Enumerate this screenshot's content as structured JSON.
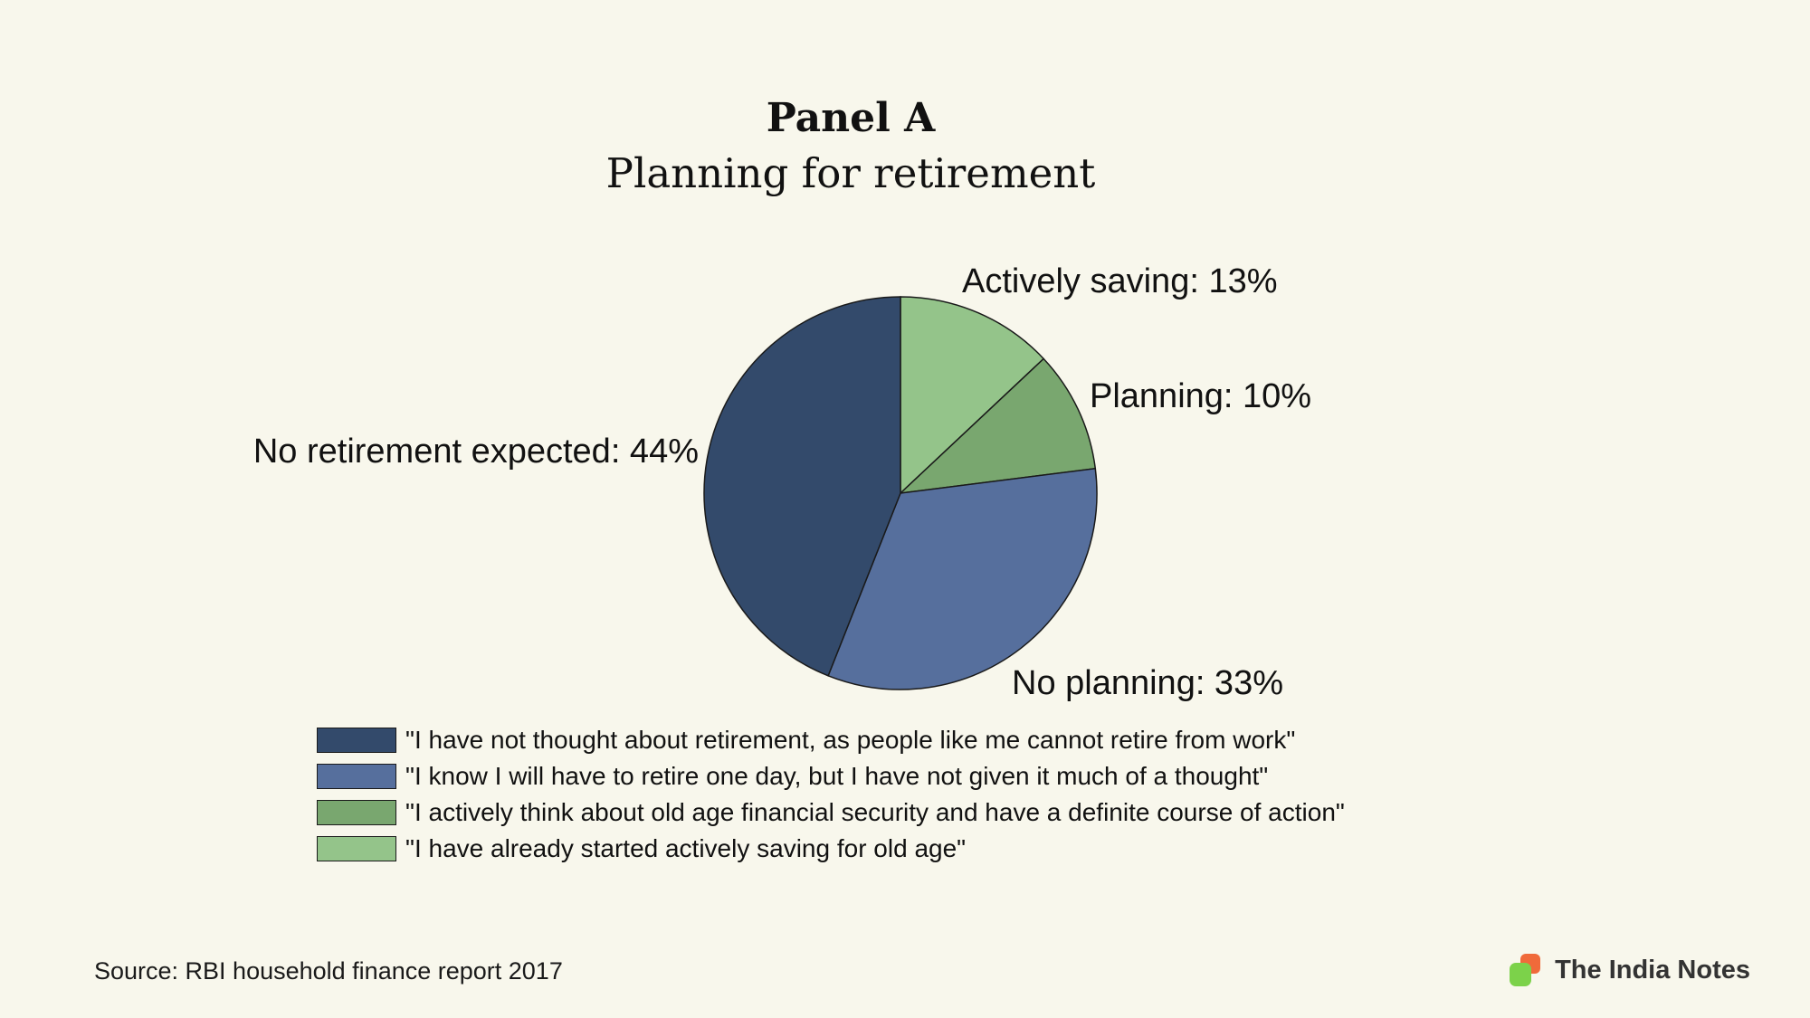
{
  "chart_data": {
    "type": "pie",
    "title": "Panel A",
    "subtitle": "Planning for retirement",
    "slices": [
      {
        "label": "Actively saving: 13%",
        "value": 13,
        "color": "#94c48a",
        "legend": "\"I have already started actively saving for old age\""
      },
      {
        "label": "Planning: 10%",
        "value": 10,
        "color": "#79a76f",
        "legend": "\"I actively think about old age financial security and have a definite course of action\""
      },
      {
        "label": "No planning: 33%",
        "value": 33,
        "color": "#566f9d",
        "legend": "\"I know I will have to retire one day, but I have not given it much of a thought\""
      },
      {
        "label": "No retirement expected: 44%",
        "value": 44,
        "color": "#334a6b",
        "legend": "\"I have not thought about retirement, as people like me cannot retire from work\""
      }
    ],
    "legend_order": [
      3,
      2,
      1,
      0
    ],
    "legend_position": "bottom"
  },
  "footer": {
    "source": "Source: RBI household finance report 2017",
    "brand": "The India Notes"
  }
}
